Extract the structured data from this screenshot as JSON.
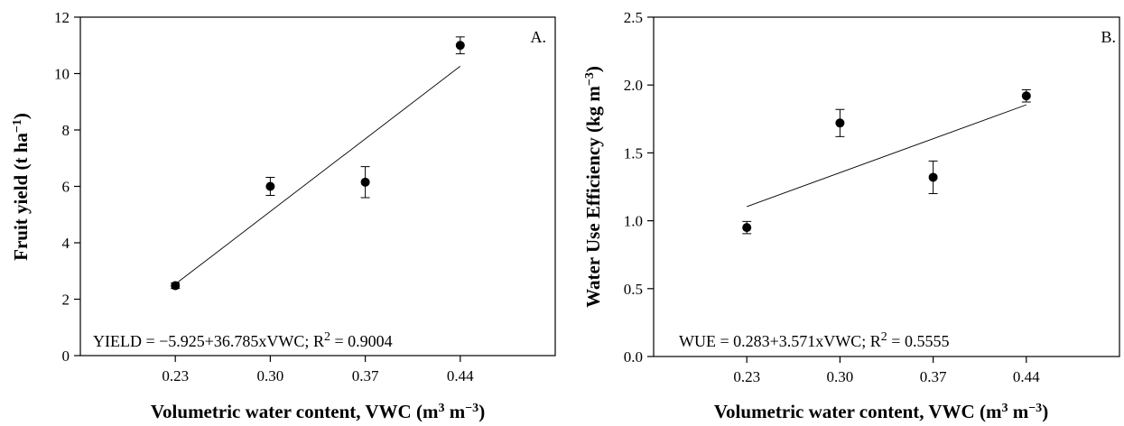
{
  "chart_data": [
    {
      "type": "scatter",
      "panel_label": "A.",
      "x": [
        "0.23",
        "0.30",
        "0.37",
        "0.44"
      ],
      "y": [
        2.48,
        6.0,
        6.15,
        11.0
      ],
      "error": [
        0.1,
        0.32,
        0.55,
        0.3
      ],
      "fit": {
        "intercept": -5.925,
        "slope": 36.785
      },
      "equation": "YIELD = −5.925+36.785xVWC;",
      "r2_label": "R",
      "r2_sup": "2",
      "r2_value": " = 0.9004",
      "xlabel": {
        "main": "Volumetric  water content, VWC (m",
        "sup1": "3",
        "mid": " m",
        "sup2": "−3",
        "end": ")"
      },
      "ylabel": {
        "main": "Fruit yield (t ha",
        "sup": "−1",
        "end": ")"
      },
      "ylim": [
        0,
        12
      ],
      "yticks": [
        "0",
        "2",
        "4",
        "6",
        "8",
        "10",
        "12"
      ],
      "xlim": [
        0.16,
        0.51
      ],
      "marker_color": "#000000"
    },
    {
      "type": "scatter",
      "panel_label": "B.",
      "x": [
        "0.23",
        "0.30",
        "0.37",
        "0.44"
      ],
      "y": [
        0.95,
        1.72,
        1.32,
        1.92
      ],
      "error": [
        0.045,
        0.1,
        0.12,
        0.045
      ],
      "fit": {
        "intercept": 0.283,
        "slope": 3.571
      },
      "equation": "WUE = 0.283+3.571xVWC;",
      "r2_label": "R",
      "r2_sup": "2",
      "r2_value": " =  0.5555",
      "xlabel": {
        "main": "Volumetric  water content, VWC (m",
        "sup1": "3",
        "mid": " m",
        "sup2": "−3",
        "end": ")"
      },
      "ylabel": {
        "main": "Water Use Efficiency (kg m",
        "sup": "−3",
        "end": ")"
      },
      "ylim": [
        0,
        2.5
      ],
      "yticks": [
        "0.0",
        "0.5",
        "1.0",
        "1.5",
        "2.0",
        "2.5"
      ],
      "xlim": [
        0.16,
        0.51
      ],
      "marker_color": "#000000"
    }
  ]
}
